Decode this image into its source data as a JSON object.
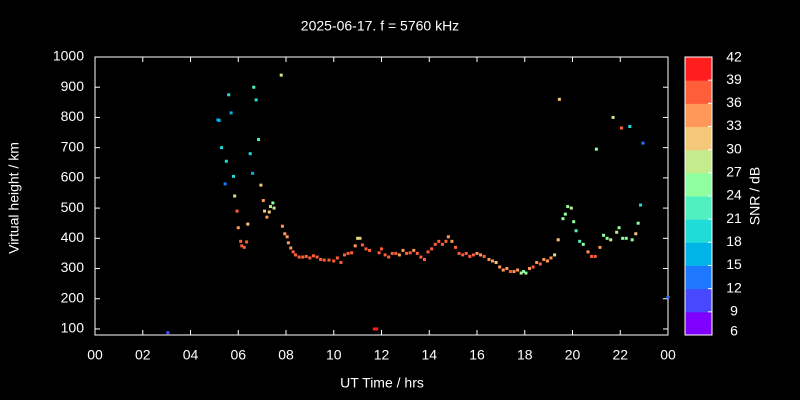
{
  "chart_data": {
    "type": "scatter",
    "title": "2025-06-17. f = 5760 kHz",
    "xlabel": "UT Time / hrs",
    "ylabel": "Virtual height / km",
    "colorbar_label": "SNR / dB",
    "xlim": [
      0,
      24
    ],
    "xticks": [
      {
        "value": 0,
        "label": "00"
      },
      {
        "value": 2,
        "label": "02"
      },
      {
        "value": 4,
        "label": "04"
      },
      {
        "value": 6,
        "label": "06"
      },
      {
        "value": 8,
        "label": "08"
      },
      10,
      12,
      14,
      16,
      18,
      20,
      22,
      {
        "value": 24,
        "label": "00"
      }
    ],
    "ylim": [
      80,
      1000
    ],
    "yticks": [
      100,
      200,
      300,
      400,
      500,
      600,
      700,
      800,
      900,
      1000
    ],
    "clim": [
      6,
      42
    ],
    "cticks": [
      6,
      9,
      12,
      15,
      18,
      21,
      24,
      27,
      30,
      33,
      36,
      39,
      42
    ],
    "colormap": [
      "#8000ff",
      "#4848ff",
      "#1e78ff",
      "#00b4e8",
      "#20dcd8",
      "#50f0c0",
      "#90ffa0",
      "#c4ec8c",
      "#f4c878",
      "#ff9858",
      "#ff5e3a",
      "#ff1e1e"
    ],
    "x": [
      3.05,
      5.15,
      5.2,
      5.3,
      5.45,
      5.5,
      5.6,
      5.7,
      5.8,
      5.85,
      5.95,
      6.0,
      6.1,
      6.15,
      6.25,
      6.35,
      6.4,
      6.5,
      6.6,
      6.65,
      6.75,
      6.85,
      6.95,
      7.05,
      7.1,
      7.2,
      7.3,
      7.35,
      7.45,
      7.5,
      7.8,
      7.85,
      7.95,
      8.05,
      8.1,
      8.2,
      8.3,
      8.4,
      8.55,
      8.7,
      8.85,
      9.0,
      9.15,
      9.3,
      9.45,
      9.6,
      9.8,
      10.0,
      10.15,
      10.3,
      10.45,
      10.6,
      10.75,
      10.9,
      11.0,
      11.1,
      11.2,
      11.35,
      11.5,
      11.7,
      11.8,
      11.9,
      12.0,
      12.15,
      12.3,
      12.45,
      12.6,
      12.75,
      12.9,
      13.05,
      13.2,
      13.35,
      13.5,
      13.65,
      13.8,
      13.95,
      14.1,
      14.25,
      14.4,
      14.55,
      14.7,
      14.8,
      14.95,
      15.1,
      15.25,
      15.4,
      15.55,
      15.7,
      15.85,
      16.0,
      16.15,
      16.3,
      16.5,
      16.65,
      16.8,
      16.95,
      17.1,
      17.25,
      17.4,
      17.55,
      17.7,
      17.85,
      17.95,
      18.05,
      18.2,
      18.35,
      18.5,
      18.65,
      18.8,
      18.95,
      19.1,
      19.25,
      19.4,
      19.45,
      19.6,
      19.7,
      19.8,
      19.95,
      20.05,
      20.15,
      20.3,
      20.45,
      20.65,
      20.8,
      20.95,
      21.0,
      21.15,
      21.3,
      21.45,
      21.6,
      21.7,
      21.85,
      21.95,
      22.05,
      22.1,
      22.25,
      22.4,
      22.5,
      22.65,
      22.75,
      22.85,
      22.95,
      24.0
    ],
    "values": [
      88,
      792,
      790,
      700,
      580,
      655,
      875,
      815,
      605,
      540,
      490,
      435,
      390,
      375,
      370,
      388,
      447,
      680,
      615,
      900,
      858,
      727,
      576,
      525,
      490,
      470,
      487,
      505,
      517,
      500,
      940,
      440,
      415,
      405,
      385,
      368,
      355,
      345,
      338,
      338,
      340,
      335,
      342,
      338,
      330,
      328,
      328,
      325,
      335,
      320,
      345,
      350,
      352,
      375,
      400,
      400,
      378,
      365,
      360,
      100,
      100,
      352,
      365,
      345,
      338,
      350,
      350,
      345,
      360,
      350,
      352,
      360,
      350,
      338,
      330,
      355,
      365,
      380,
      390,
      380,
      390,
      405,
      390,
      370,
      350,
      345,
      350,
      340,
      345,
      350,
      345,
      340,
      330,
      325,
      320,
      305,
      295,
      300,
      290,
      290,
      295,
      285,
      290,
      285,
      300,
      305,
      320,
      315,
      330,
      325,
      335,
      345,
      395,
      860,
      465,
      480,
      505,
      500,
      455,
      425,
      390,
      380,
      355,
      340,
      340,
      695,
      370,
      410,
      400,
      395,
      800,
      420,
      435,
      765,
      400,
      400,
      770,
      395,
      415,
      450,
      510,
      715,
      205
    ],
    "snr": [
      10,
      17,
      17,
      18,
      14,
      18,
      18,
      17,
      20,
      27,
      38,
      34,
      36,
      38,
      38,
      37,
      30,
      20,
      17,
      21,
      19,
      22,
      30,
      35,
      31,
      34,
      31,
      28,
      26,
      27,
      28,
      33,
      33,
      34,
      34,
      35,
      36,
      36,
      37,
      37,
      36,
      37,
      36,
      37,
      37,
      36,
      37,
      37,
      37,
      37,
      36,
      37,
      36,
      35,
      29,
      30,
      36,
      36,
      37,
      40,
      40,
      36,
      36,
      38,
      38,
      37,
      36,
      35,
      34,
      36,
      37,
      35,
      36,
      38,
      38,
      37,
      37,
      36,
      37,
      38,
      37,
      33,
      35,
      36,
      37,
      36,
      37,
      37,
      36,
      35,
      34,
      36,
      35,
      33,
      31,
      33,
      34,
      35,
      36,
      35,
      33,
      27,
      25,
      26,
      34,
      36,
      35,
      37,
      35,
      34,
      33,
      27,
      30,
      30,
      25,
      24,
      25,
      27,
      24,
      23,
      22,
      24,
      33,
      36,
      37,
      26,
      33,
      24,
      26,
      27,
      29,
      27,
      25,
      38,
      24,
      25,
      20,
      26,
      32,
      25,
      20,
      12,
      12
    ]
  }
}
